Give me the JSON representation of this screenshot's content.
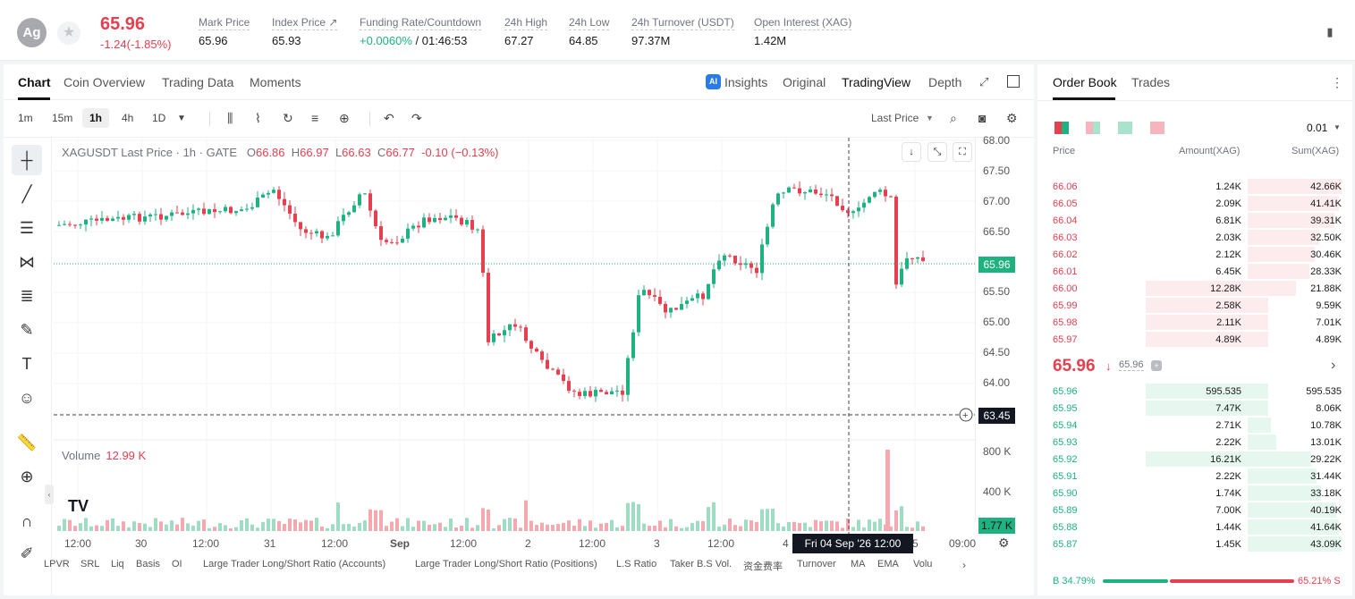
{
  "header": {
    "coin_icon": "Ag",
    "last_price": "65.96",
    "change": "-1.24(-1.85%)",
    "stats": [
      {
        "label": "Mark Price",
        "value": "65.96"
      },
      {
        "label": "Index Price ↗",
        "value": "65.93"
      },
      {
        "label": "Funding Rate/Countdown",
        "value_green": "+0.0060%",
        "value": " / 01:46:53"
      },
      {
        "label": "24h High",
        "value": "67.27"
      },
      {
        "label": "24h Low",
        "value": "64.85"
      },
      {
        "label": "24h Turnover (USDT)",
        "value": "97.37M"
      },
      {
        "label": "Open Interest (XAG)",
        "value": "1.42M"
      }
    ]
  },
  "chart_tabs": [
    "Chart",
    "Coin Overview",
    "Trading Data",
    "Moments"
  ],
  "view_tabs": {
    "insights": "Insights",
    "original": "Original",
    "tradingview": "TradingView",
    "depth": "Depth"
  },
  "timeframes": [
    "1m",
    "15m",
    "1h",
    "4h",
    "1D"
  ],
  "price_type": "Last Price",
  "legend": {
    "symbol": "XAGUSDT Last Price · 1h · GATE",
    "o_k": "O",
    "o": "66.86",
    "h_k": "H",
    "h": "66.97",
    "l_k": "L",
    "l": "66.63",
    "c_k": "C",
    "c": "66.77",
    "chg": "-0.10 (−0.13%)"
  },
  "volume": {
    "label": "Volume",
    "value": "12.99 K"
  },
  "y_ticks": [
    "68.00",
    "67.50",
    "67.00",
    "66.50",
    "65.50",
    "65.00",
    "64.50",
    "64.00"
  ],
  "vol_ticks": [
    "800 K",
    "400 K"
  ],
  "price_tag_last": "65.96",
  "price_tag_cross": "63.45",
  "vol_tag": "1.77 K",
  "x_ticks": [
    "12:00",
    "30",
    "12:00",
    "31",
    "12:00",
    "Sep",
    "12:00",
    "2",
    "12:00",
    "3",
    "12:00",
    "4",
    "5",
    "09:00"
  ],
  "crosshair_x": "Fri 04 Sep '26   12:00",
  "indicators": [
    "LPVR",
    "SRL",
    "Liq",
    "Basis",
    "OI",
    "Large Trader Long/Short Ratio (Accounts)",
    "Large Trader Long/Short Ratio (Positions)",
    "L.S Ratio",
    "Taker B.S Vol.",
    "资金费率",
    "Turnover",
    "MA",
    "EMA",
    "Volu"
  ],
  "orderbook": {
    "tabs": [
      "Order Book",
      "Trades"
    ],
    "precision": "0.01",
    "headers": [
      "Price",
      "Amount(XAG)",
      "Sum(XAG)"
    ],
    "asks": [
      {
        "price": "66.06",
        "amount": "1.24K",
        "sum": "42.66K",
        "af": 0.0,
        "sf": 1.0
      },
      {
        "price": "66.05",
        "amount": "2.09K",
        "sum": "41.41K",
        "af": 0.0,
        "sf": 0.97
      },
      {
        "price": "66.04",
        "amount": "6.81K",
        "sum": "39.31K",
        "af": 0.0,
        "sf": 0.92
      },
      {
        "price": "66.03",
        "amount": "2.03K",
        "sum": "32.50K",
        "af": 0.0,
        "sf": 0.76
      },
      {
        "price": "66.02",
        "amount": "2.12K",
        "sum": "30.46K",
        "af": 0.0,
        "sf": 0.71
      },
      {
        "price": "66.01",
        "amount": "6.45K",
        "sum": "28.33K",
        "af": 0.0,
        "sf": 0.66
      },
      {
        "price": "66.00",
        "amount": "12.28K",
        "sum": "21.88K",
        "af": 1.0,
        "sf": 0.51
      },
      {
        "price": "65.99",
        "amount": "2.58K",
        "sum": "9.59K",
        "af": 1.0,
        "sf": 0.22
      },
      {
        "price": "65.98",
        "amount": "2.11K",
        "sum": "7.01K",
        "af": 1.0,
        "sf": 0.16
      },
      {
        "price": "65.97",
        "amount": "4.89K",
        "sum": "4.89K",
        "af": 1.0,
        "sf": 0.11
      }
    ],
    "mid_price": "65.96",
    "mid_mark": "65.96",
    "bids": [
      {
        "price": "65.96",
        "amount": "595.535",
        "sum": "595.535",
        "af": 1.0,
        "sf": 0.02
      },
      {
        "price": "65.95",
        "amount": "7.47K",
        "sum": "8.06K",
        "af": 1.0,
        "sf": 0.19
      },
      {
        "price": "65.94",
        "amount": "2.71K",
        "sum": "10.78K",
        "af": 0.0,
        "sf": 0.25
      },
      {
        "price": "65.93",
        "amount": "2.22K",
        "sum": "13.01K",
        "af": 0.0,
        "sf": 0.3
      },
      {
        "price": "65.92",
        "amount": "16.21K",
        "sum": "29.22K",
        "af": 1.0,
        "sf": 0.68
      },
      {
        "price": "65.91",
        "amount": "2.22K",
        "sum": "31.44K",
        "af": 0.0,
        "sf": 0.73
      },
      {
        "price": "65.90",
        "amount": "1.74K",
        "sum": "33.18K",
        "af": 0.0,
        "sf": 0.78
      },
      {
        "price": "65.89",
        "amount": "7.00K",
        "sum": "40.19K",
        "af": 0.0,
        "sf": 0.94
      },
      {
        "price": "65.88",
        "amount": "1.44K",
        "sum": "41.64K",
        "af": 0.0,
        "sf": 0.97
      },
      {
        "price": "65.87",
        "amount": "1.45K",
        "sum": "43.09K",
        "af": 0.0,
        "sf": 1.0
      }
    ],
    "buy_ratio": "B 34.79%",
    "sell_ratio": "65.21% S"
  },
  "colors": {
    "up": "#1fb17f",
    "down": "#e5404f"
  }
}
